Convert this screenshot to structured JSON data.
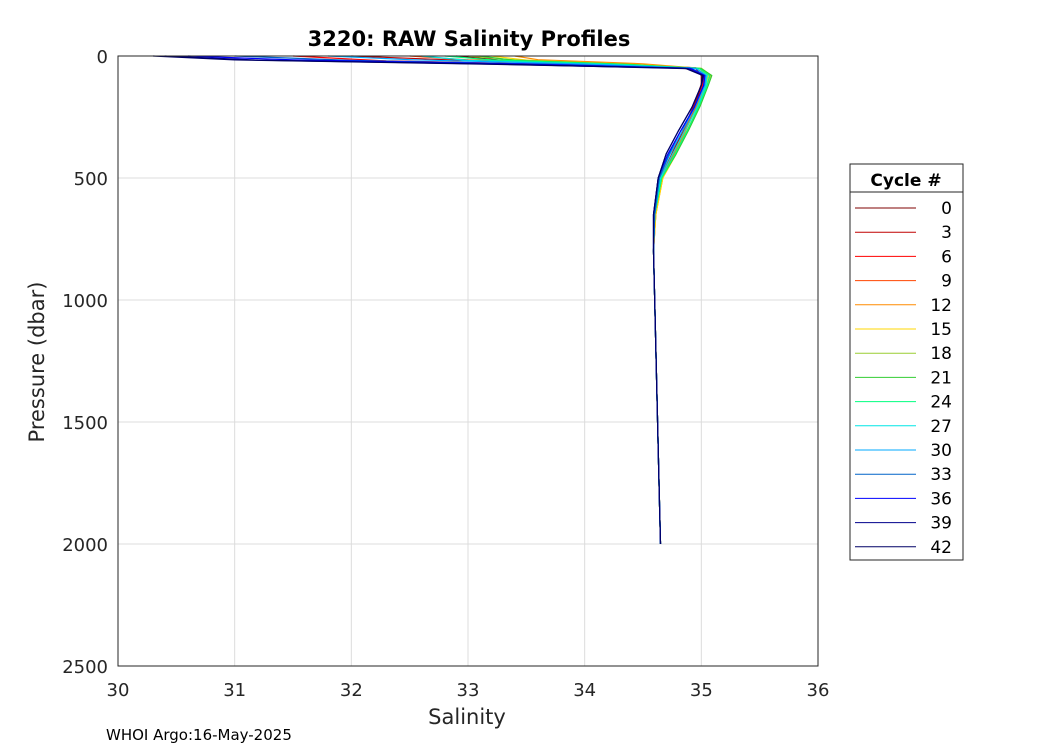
{
  "footer": "WHOI Argo:16-May-2025",
  "chart_data": {
    "type": "line",
    "title": "3220: RAW Salinity Profiles",
    "xlabel": "Salinity",
    "ylabel": "Pressure (dbar)",
    "xlim": [
      30,
      36
    ],
    "ylim": [
      0,
      2500
    ],
    "y_reversed": true,
    "grid": true,
    "xticks": [
      30,
      31,
      32,
      33,
      34,
      35,
      36
    ],
    "yticks": [
      0,
      500,
      1000,
      1500,
      2000,
      2500
    ],
    "legend": {
      "title": "Cycle #",
      "placement": "outside-right",
      "entries": [
        "0",
        "3",
        "6",
        "9",
        "12",
        "15",
        "18",
        "21",
        "24",
        "27",
        "30",
        "33",
        "36",
        "39",
        "42"
      ]
    },
    "series": [
      {
        "name": "0",
        "color": "#7f0000",
        "x": [
          32.9,
          33.3,
          34.4,
          34.95,
          35.0,
          35.0,
          34.95,
          34.85,
          34.75,
          34.65,
          34.6,
          34.59,
          34.6,
          34.62,
          34.64,
          34.65
        ],
        "y": [
          0,
          18,
          35,
          50,
          80,
          120,
          200,
          300,
          400,
          500,
          650,
          800,
          1000,
          1400,
          1800,
          2000
        ]
      },
      {
        "name": "3",
        "color": "#c00000",
        "x": [
          32.0,
          32.8,
          34.2,
          34.95,
          35.02,
          35.0,
          34.94,
          34.84,
          34.74,
          34.65,
          34.6,
          34.59,
          34.6,
          34.62,
          34.64,
          34.65
        ],
        "y": [
          0,
          15,
          33,
          48,
          75,
          115,
          200,
          305,
          410,
          500,
          650,
          800,
          1000,
          1400,
          1800,
          2000
        ]
      },
      {
        "name": "6",
        "color": "#ff0000",
        "x": [
          31.5,
          32.3,
          34.0,
          34.9,
          35.02,
          35.01,
          34.95,
          34.86,
          34.76,
          34.66,
          34.6,
          34.59,
          34.6,
          34.62,
          34.64,
          34.65
        ],
        "y": [
          0,
          20,
          36,
          52,
          80,
          120,
          210,
          310,
          410,
          500,
          650,
          800,
          1000,
          1400,
          1800,
          2000
        ]
      },
      {
        "name": "9",
        "color": "#ff4500",
        "x": [
          32.5,
          33.0,
          34.3,
          34.95,
          35.03,
          35.02,
          34.96,
          34.86,
          34.76,
          34.66,
          34.61,
          34.59,
          34.6,
          34.62,
          34.64,
          34.65
        ],
        "y": [
          0,
          16,
          34,
          50,
          78,
          118,
          205,
          300,
          400,
          500,
          650,
          800,
          1000,
          1400,
          1800,
          2000
        ]
      },
      {
        "name": "12",
        "color": "#ff8c00",
        "x": [
          33.4,
          33.6,
          34.5,
          34.98,
          35.05,
          35.03,
          34.97,
          34.87,
          34.77,
          34.67,
          34.61,
          34.59,
          34.6,
          34.62,
          34.64,
          34.65
        ],
        "y": [
          0,
          15,
          32,
          50,
          80,
          120,
          200,
          300,
          400,
          500,
          650,
          800,
          1000,
          1400,
          1800,
          2000
        ]
      },
      {
        "name": "15",
        "color": "#ffd700",
        "x": [
          33.2,
          33.5,
          34.4,
          34.98,
          35.06,
          35.04,
          34.98,
          34.88,
          34.78,
          34.67,
          34.61,
          34.59,
          34.6,
          34.62,
          34.64,
          34.65
        ],
        "y": [
          0,
          17,
          34,
          50,
          80,
          120,
          205,
          305,
          405,
          500,
          650,
          800,
          1000,
          1400,
          1800,
          2000
        ]
      },
      {
        "name": "18",
        "color": "#9acd32",
        "x": [
          33.0,
          33.4,
          34.3,
          35.0,
          35.08,
          35.05,
          34.98,
          34.88,
          34.77,
          34.66,
          34.6,
          34.59,
          34.6,
          34.62,
          34.64,
          34.65
        ],
        "y": [
          0,
          16,
          33,
          50,
          78,
          118,
          205,
          305,
          405,
          500,
          650,
          800,
          1000,
          1400,
          1800,
          2000
        ]
      },
      {
        "name": "21",
        "color": "#32cd32",
        "x": [
          33.1,
          33.4,
          34.4,
          35.0,
          35.09,
          35.06,
          34.99,
          34.89,
          34.78,
          34.66,
          34.6,
          34.59,
          34.6,
          34.62,
          34.64,
          34.65
        ],
        "y": [
          0,
          18,
          35,
          52,
          80,
          120,
          205,
          305,
          405,
          500,
          650,
          800,
          1000,
          1400,
          1800,
          2000
        ]
      },
      {
        "name": "24",
        "color": "#00ff7f",
        "x": [
          32.8,
          33.2,
          34.3,
          34.98,
          35.07,
          35.05,
          34.98,
          34.88,
          34.77,
          34.66,
          34.6,
          34.59,
          34.6,
          34.62,
          34.64,
          34.65
        ],
        "y": [
          0,
          16,
          34,
          50,
          80,
          120,
          205,
          305,
          405,
          500,
          650,
          800,
          1000,
          1400,
          1800,
          2000
        ]
      },
      {
        "name": "27",
        "color": "#00e5e5",
        "x": [
          32.6,
          33.0,
          34.2,
          34.96,
          35.05,
          35.04,
          34.97,
          34.86,
          34.75,
          34.65,
          34.6,
          34.59,
          34.6,
          34.62,
          34.64,
          34.65
        ],
        "y": [
          0,
          18,
          35,
          52,
          80,
          120,
          205,
          305,
          405,
          500,
          650,
          800,
          1000,
          1400,
          1800,
          2000
        ]
      },
      {
        "name": "30",
        "color": "#00aaff",
        "x": [
          31.8,
          32.5,
          34.0,
          34.95,
          35.04,
          35.03,
          34.95,
          34.84,
          34.73,
          34.64,
          34.6,
          34.59,
          34.6,
          34.62,
          34.64,
          34.65
        ],
        "y": [
          0,
          15,
          33,
          50,
          80,
          120,
          205,
          305,
          405,
          500,
          650,
          800,
          1000,
          1400,
          1800,
          2000
        ]
      },
      {
        "name": "33",
        "color": "#0064c8",
        "x": [
          31.0,
          32.0,
          33.8,
          34.92,
          35.03,
          35.02,
          34.94,
          34.82,
          34.72,
          34.64,
          34.6,
          34.59,
          34.6,
          34.62,
          34.64,
          34.65
        ],
        "y": [
          0,
          18,
          35,
          52,
          80,
          120,
          210,
          310,
          405,
          500,
          650,
          800,
          1000,
          1400,
          1800,
          2000
        ]
      },
      {
        "name": "36",
        "color": "#0000ff",
        "x": [
          30.6,
          31.5,
          33.6,
          34.9,
          35.03,
          35.02,
          34.94,
          34.82,
          34.71,
          34.63,
          34.59,
          34.59,
          34.6,
          34.62,
          34.64,
          34.65
        ],
        "y": [
          0,
          16,
          34,
          50,
          80,
          120,
          210,
          310,
          405,
          500,
          650,
          800,
          1000,
          1400,
          1800,
          2000
        ]
      },
      {
        "name": "39",
        "color": "#00008b",
        "x": [
          30.4,
          31.2,
          33.4,
          34.88,
          35.02,
          35.0,
          34.92,
          34.8,
          34.7,
          34.63,
          34.59,
          34.59,
          34.6,
          34.62,
          34.64,
          34.65
        ],
        "y": [
          0,
          17,
          35,
          52,
          80,
          120,
          210,
          310,
          400,
          500,
          650,
          800,
          1000,
          1400,
          1800,
          2000
        ]
      },
      {
        "name": "42",
        "color": "#000066",
        "x": [
          30.3,
          31.0,
          33.2,
          34.86,
          35.01,
          35.0,
          34.92,
          34.8,
          34.7,
          34.63,
          34.59,
          34.59,
          34.6,
          34.62,
          34.64,
          34.65
        ],
        "y": [
          0,
          16,
          34,
          50,
          80,
          120,
          210,
          310,
          400,
          500,
          650,
          800,
          1000,
          1400,
          1800,
          2000
        ]
      }
    ]
  }
}
